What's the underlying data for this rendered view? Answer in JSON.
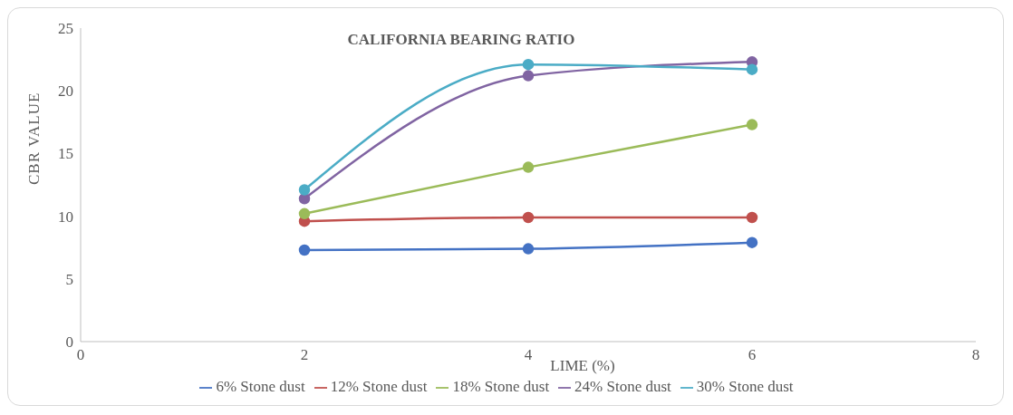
{
  "chart_data": {
    "type": "line",
    "title": "CALIFORNIA BEARING RATIO",
    "xlabel": "LIME (%)",
    "ylabel": "CBR VALUE",
    "x": [
      2,
      4,
      6
    ],
    "series": [
      {
        "name": "6% Stone dust",
        "color": "#4472c4",
        "values": [
          7.3,
          7.4,
          7.9
        ]
      },
      {
        "name": "12% Stone dust",
        "color": "#c0504d",
        "values": [
          9.6,
          9.9,
          9.9
        ]
      },
      {
        "name": "18% Stone dust",
        "color": "#9bbb59",
        "values": [
          10.2,
          13.9,
          17.3
        ]
      },
      {
        "name": "24% Stone dust",
        "color": "#8064a2",
        "values": [
          11.4,
          21.2,
          22.3
        ]
      },
      {
        "name": "30% Stone dust",
        "color": "#4bacc6",
        "values": [
          12.1,
          22.1,
          21.7
        ]
      }
    ],
    "xlim": [
      0,
      8
    ],
    "xticks": [
      0,
      2,
      4,
      6,
      8
    ],
    "ylim": [
      0,
      25
    ],
    "yticks": [
      0,
      5,
      10,
      15,
      20,
      25
    ],
    "grid": false,
    "legend": "bottom",
    "marker": "circle",
    "line_style": "solid"
  }
}
